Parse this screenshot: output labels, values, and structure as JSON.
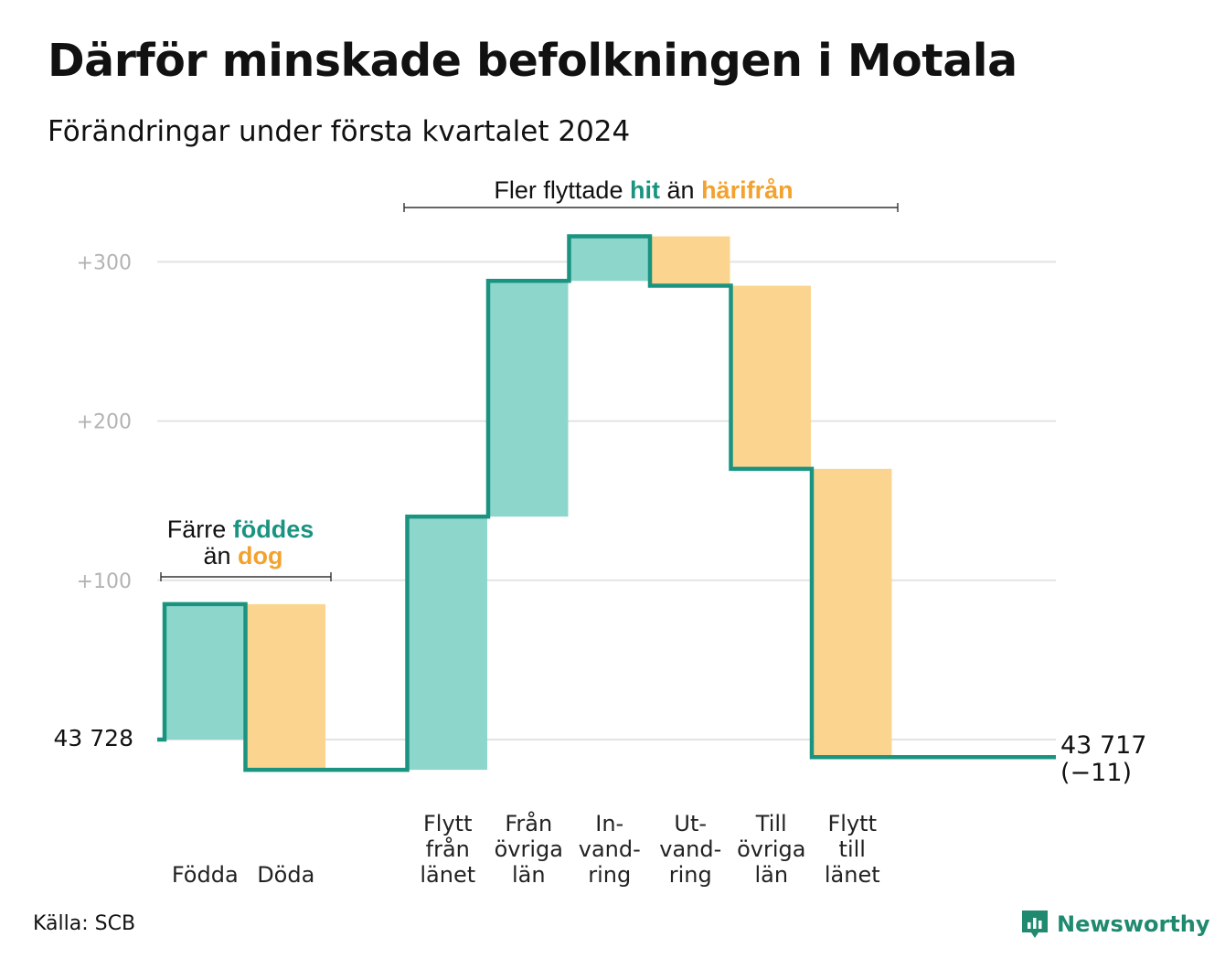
{
  "title": "Därför minskade befolkningen i Motala",
  "subtitle": "Förändringar under första kvartalet 2024",
  "source": "Källa: SCB",
  "brand": "Newsworthy",
  "colors": {
    "increase": "#8dd6cb",
    "decrease": "#fbd58f",
    "line": "#1a9480",
    "grid": "#e3e3e3",
    "accent_in": "#1a9480",
    "accent_out": "#f2a22e"
  },
  "annotations": {
    "births": {
      "line1_plain": "Färre",
      "line1_em": "föddes",
      "line2_plain": "än",
      "line2_em": "dog"
    },
    "migration": {
      "plain1": "Fler flyttade",
      "em1": "hit",
      "plain2": "än",
      "em2": "härifrån"
    }
  },
  "chart_data": {
    "type": "waterfall",
    "title": "Därför minskade befolkningen i Motala",
    "subtitle": "Förändringar under första kvartalet 2024",
    "start_value": 43728,
    "start_label": "43  728",
    "end_value": 43717,
    "end_label": "43 717",
    "end_change_label": "(−11)",
    "y_ticks": [
      {
        "value": 100,
        "label": "+100"
      },
      {
        "value": 200,
        "label": "+200"
      },
      {
        "value": 300,
        "label": "+300"
      }
    ],
    "ylim": [
      -30,
      310
    ],
    "grid": true,
    "steps": [
      {
        "label": [
          "Födda"
        ],
        "change": 85,
        "kind": "increase"
      },
      {
        "label": [
          "Döda"
        ],
        "change": -104,
        "kind": "decrease"
      },
      {
        "label": [],
        "change": 0,
        "kind": "gap"
      },
      {
        "label": [
          "Flytt",
          "från",
          "länet"
        ],
        "change": 159,
        "kind": "increase"
      },
      {
        "label": [
          "Från",
          "övriga",
          "län"
        ],
        "change": 148,
        "kind": "increase"
      },
      {
        "label": [
          "In-",
          "vand-",
          "ring"
        ],
        "change": 28,
        "kind": "increase"
      },
      {
        "label": [
          "Ut-",
          "vand-",
          "ring"
        ],
        "change": -31,
        "kind": "decrease"
      },
      {
        "label": [
          "Till",
          "övriga",
          "län"
        ],
        "change": -115,
        "kind": "decrease"
      },
      {
        "label": [
          "Flytt",
          "till",
          "länet"
        ],
        "change": -181,
        "kind": "decrease"
      }
    ]
  }
}
